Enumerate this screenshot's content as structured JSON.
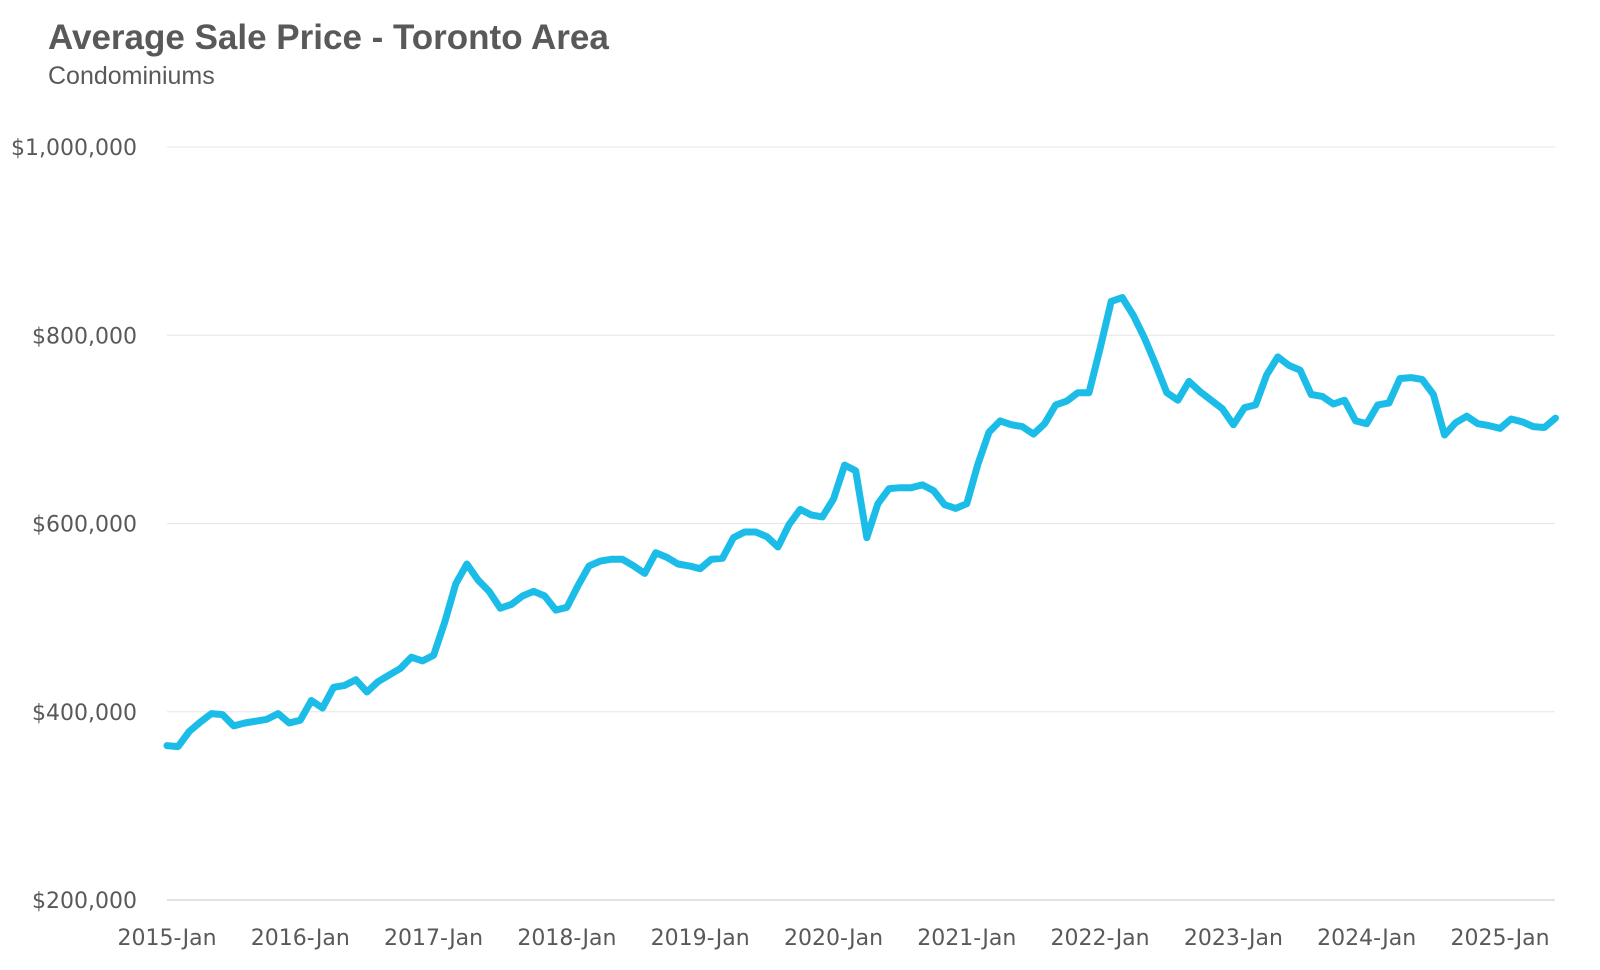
{
  "chart_data": {
    "type": "line",
    "title": "Average Sale Price - Toronto Area",
    "subtitle": "Condominiums",
    "xlabel": "",
    "ylabel": "",
    "ylim": [
      200000,
      1000000
    ],
    "yticks": [
      200000,
      400000,
      600000,
      800000,
      1000000
    ],
    "ytick_labels": [
      "$200,000",
      "$400,000",
      "$600,000",
      "$800,000",
      "$1,000,000"
    ],
    "xticks": [
      "2015-Jan",
      "2016-Jan",
      "2017-Jan",
      "2018-Jan",
      "2019-Jan",
      "2020-Jan",
      "2021-Jan",
      "2022-Jan",
      "2023-Jan",
      "2024-Jan",
      "2025-Jan"
    ],
    "grid": true,
    "legend": "none",
    "series": [
      {
        "color": "#1bbde8",
        "start": "2015-Jan",
        "frequency": "monthly",
        "values": [
          364000,
          363000,
          379000,
          389000,
          398000,
          397000,
          385000,
          388000,
          390000,
          392000,
          398000,
          388000,
          391000,
          412000,
          404000,
          426000,
          428000,
          434000,
          421000,
          432000,
          439000,
          446000,
          458000,
          454000,
          460000,
          495000,
          536000,
          557000,
          540000,
          528000,
          510000,
          514000,
          523000,
          528000,
          523000,
          508000,
          511000,
          534000,
          555000,
          560000,
          562000,
          562000,
          555000,
          547000,
          569000,
          564000,
          557000,
          555000,
          552000,
          562000,
          563000,
          585000,
          591000,
          591000,
          586000,
          575000,
          599000,
          615000,
          609000,
          607000,
          626000,
          662000,
          656000,
          585000,
          621000,
          637000,
          638000,
          638000,
          641000,
          635000,
          620000,
          616000,
          621000,
          663000,
          697000,
          709000,
          705000,
          703000,
          695000,
          706000,
          726000,
          730000,
          739000,
          739000,
          786000,
          836000,
          840000,
          821000,
          797000,
          769000,
          739000,
          731000,
          751000,
          740000,
          731000,
          722000,
          705000,
          723000,
          726000,
          758000,
          777000,
          768000,
          763000,
          737000,
          735000,
          727000,
          731000,
          709000,
          706000,
          726000,
          728000,
          754000,
          755000,
          753000,
          737000,
          694000,
          707000,
          714000,
          706000,
          704000,
          701000,
          711000,
          708000,
          703000,
          702000,
          712000
        ]
      }
    ]
  }
}
